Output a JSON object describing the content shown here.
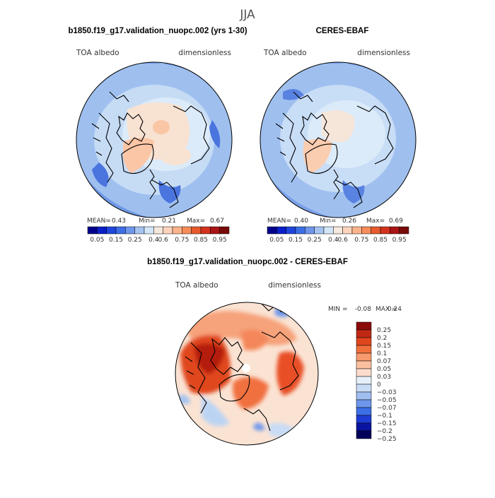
{
  "figure_title": "JJA",
  "colors": {
    "coast": "#000000",
    "cb_seq": [
      "#00008b",
      "#0a1ec8",
      "#1e46dc",
      "#3c6ee6",
      "#6e96eb",
      "#a5c3f0",
      "#d2e6f8",
      "#f5e8dc",
      "#fcd4bc",
      "#fbb48c",
      "#f88c5a",
      "#e65a2d",
      "#d2321e",
      "#aa1414",
      "#780a0a"
    ],
    "cb_diff": [
      "#00005a",
      "#0a14a0",
      "#1e3cd2",
      "#3c6ee6",
      "#6e96eb",
      "#a0bef0",
      "#c8dcf5",
      "#e6f0fa",
      "#fcdccc",
      "#fbc0a0",
      "#f89a6e",
      "#f0703c",
      "#e0461e",
      "#c02814",
      "#8c0a0a"
    ]
  },
  "chart_data": [
    {
      "type": "map",
      "title": "b1850.f19_g17.validation_nuopc.002 (yrs 1-30)",
      "variable": "TOA albedo",
      "units": "dimensionless",
      "mean_label": "MEAN=",
      "mean": "0.43",
      "min_label": "Min=",
      "min": "0.21",
      "max_label": "Max=",
      "max": "0.67",
      "colorbar_ticks": [
        "0.05",
        "0.15",
        "0.25",
        "0.4",
        "0.6",
        "0.75",
        "0.85",
        "0.95"
      ]
    },
    {
      "type": "map",
      "title": "CERES-EBAF",
      "variable": "TOA albedo",
      "units": "dimensionless",
      "mean_label": "MEAN=",
      "mean": "0.40",
      "min_label": "Min=",
      "min": "0.26",
      "max_label": "Max=",
      "max": "0.69",
      "colorbar_ticks": [
        "0.05",
        "0.15",
        "0.25",
        "0.4",
        "0.6",
        "0.75",
        "0.85",
        "0.95"
      ]
    },
    {
      "type": "map",
      "title": "b1850.f19_g17.validation_nuopc.002 - CERES-EBAF",
      "variable": "TOA albedo",
      "units": "dimensionless",
      "min_label": "MIN =",
      "min": "-0.08",
      "max_label": "MAX =",
      "max": "0.24",
      "colorbar_ticks": [
        "0.25",
        "0.2",
        "0.15",
        "0.1",
        "0.07",
        "0.05",
        "0.03",
        "0",
        "−0.03",
        "−0.05",
        "−0.07",
        "−0.1",
        "−0.15",
        "−0.2",
        "−0.25"
      ]
    }
  ]
}
